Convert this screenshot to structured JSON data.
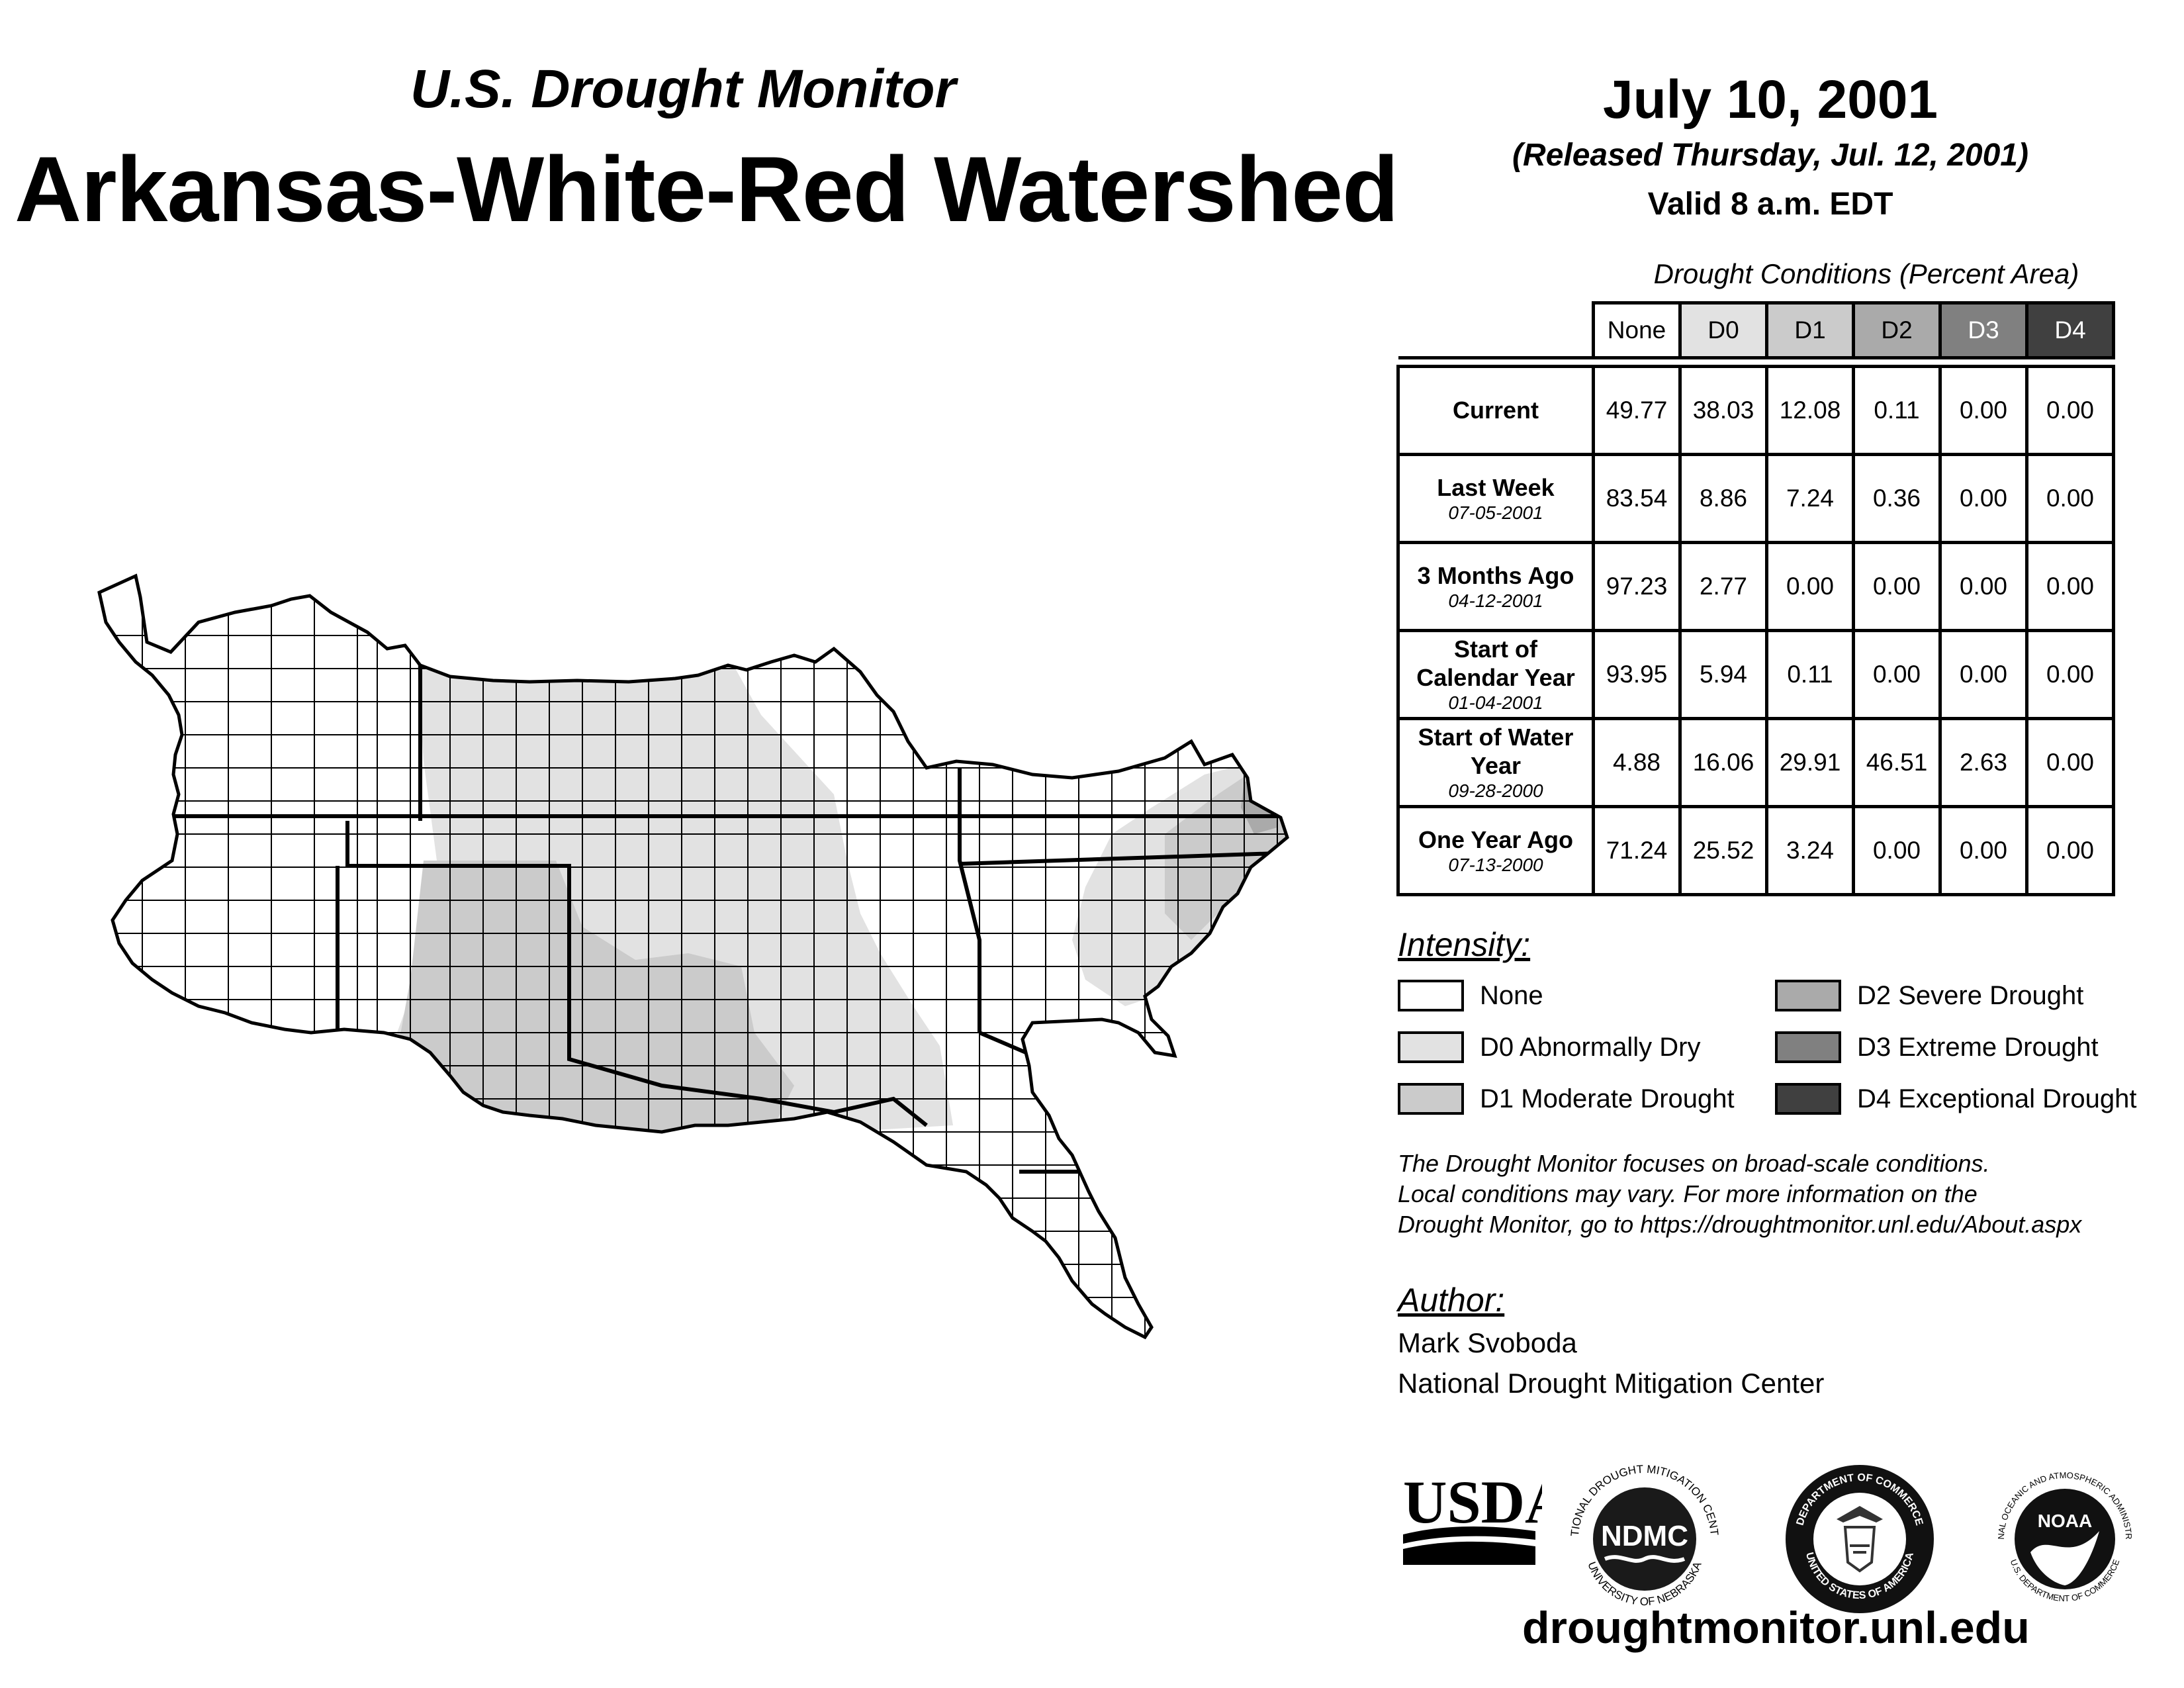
{
  "header": {
    "subtitle": "U.S. Drought Monitor",
    "title": "Arkansas-White-Red Watershed",
    "date": "July 10, 2001",
    "released": "(Released Thursday, Jul. 12, 2001)",
    "valid": "Valid 8 a.m. EDT"
  },
  "table": {
    "title": "Drought Conditions (Percent Area)",
    "columns": [
      "None",
      "D0",
      "D1",
      "D2",
      "D3",
      "D4"
    ],
    "column_colors": [
      "#ffffff",
      "#e2e2e2",
      "#cbcbcb",
      "#aaaaaa",
      "#808080",
      "#404040"
    ],
    "rows": [
      {
        "label": "Current",
        "sub": "",
        "values": [
          "49.77",
          "38.03",
          "12.08",
          "0.11",
          "0.00",
          "0.00"
        ]
      },
      {
        "label": "Last Week",
        "sub": "07-05-2001",
        "values": [
          "83.54",
          "8.86",
          "7.24",
          "0.36",
          "0.00",
          "0.00"
        ]
      },
      {
        "label": "3 Months Ago",
        "sub": "04-12-2001",
        "values": [
          "97.23",
          "2.77",
          "0.00",
          "0.00",
          "0.00",
          "0.00"
        ]
      },
      {
        "label": "Start of Calendar Year",
        "sub": "01-04-2001",
        "values": [
          "93.95",
          "5.94",
          "0.11",
          "0.00",
          "0.00",
          "0.00"
        ]
      },
      {
        "label": "Start of Water Year",
        "sub": "09-28-2000",
        "values": [
          "4.88",
          "16.06",
          "29.91",
          "46.51",
          "2.63",
          "0.00"
        ]
      },
      {
        "label": "One Year Ago",
        "sub": "07-13-2000",
        "values": [
          "71.24",
          "25.52",
          "3.24",
          "0.00",
          "0.00",
          "0.00"
        ]
      }
    ]
  },
  "legend": {
    "title": "Intensity:",
    "items": [
      {
        "label": "None",
        "color": "#ffffff"
      },
      {
        "label": "D0 Abnormally Dry",
        "color": "#e2e2e2"
      },
      {
        "label": "D1 Moderate Drought",
        "color": "#cbcbcb"
      },
      {
        "label": "D2 Severe Drought",
        "color": "#aaaaaa"
      },
      {
        "label": "D3 Extreme Drought",
        "color": "#808080"
      },
      {
        "label": "D4 Exceptional Drought",
        "color": "#404040"
      }
    ]
  },
  "note": {
    "line1": "The Drought Monitor focuses on broad-scale conditions.",
    "line2": "Local conditions may vary. For more information on the",
    "line3": "Drought Monitor, go to https://droughtmonitor.unl.edu/About.aspx"
  },
  "author": {
    "title": "Author:",
    "name": "Mark Svoboda",
    "org": "National Drought Mitigation Center"
  },
  "logos": {
    "usda": "USDA",
    "ndmc": "NDMC",
    "ndmc_ring_top": "NATIONAL DROUGHT MITIGATION CENTER",
    "ndmc_ring_bottom": "UNIVERSITY OF NEBRASKA",
    "doc_ring_top": "DEPARTMENT OF COMMERCE",
    "doc_ring_bottom": "UNITED STATES OF AMERICA",
    "noaa": "NOAA",
    "noaa_ring_top": "NATIONAL OCEANIC AND ATMOSPHERIC ADMINISTRATION",
    "noaa_ring_bottom": "U.S. DEPARTMENT OF COMMERCE"
  },
  "url": "droughtmonitor.unl.edu"
}
